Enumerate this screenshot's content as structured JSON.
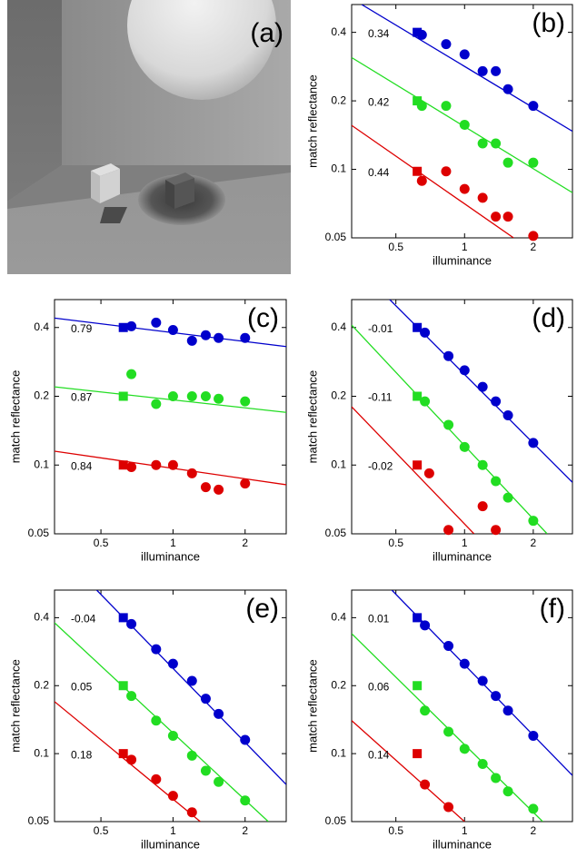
{
  "image_panel": {
    "label": "(a)"
  },
  "chart_data": [
    {
      "type": "scatter",
      "panel_label": "(b)",
      "xlabel": "illuminance",
      "ylabel": "match reflectance",
      "log_scale": true,
      "xlim": [
        0.32,
        2.97
      ],
      "ylim": [
        0.05,
        0.53
      ],
      "xticks": [
        0.5,
        1,
        2
      ],
      "yticks": [
        0.05,
        0.1,
        0.2,
        0.4
      ],
      "series": [
        {
          "color": "#0000cc",
          "annotation": "0.34",
          "reference": {
            "x": 0.62,
            "value": 0.4
          },
          "x": [
            0.65,
            0.83,
            1,
            1.2,
            1.37,
            1.55,
            2
          ],
          "values": [
            0.39,
            0.355,
            0.32,
            0.27,
            0.27,
            0.225,
            0.19
          ],
          "fit_x": [
            0.354,
            2.97
          ],
          "fit_y": [
            0.53,
            0.147
          ]
        },
        {
          "color": "#22dd22",
          "annotation": "0.42",
          "reference": {
            "x": 0.62,
            "value": 0.2
          },
          "x": [
            0.65,
            0.83,
            1,
            1.2,
            1.37,
            1.55,
            2
          ],
          "values": [
            0.19,
            0.19,
            0.157,
            0.13,
            0.13,
            0.107,
            0.107
          ],
          "fit_x": [
            0.32,
            2.97
          ],
          "fit_y": [
            0.31,
            0.079
          ]
        },
        {
          "color": "#dd0000",
          "annotation": "0.44",
          "reference": {
            "x": 0.62,
            "value": 0.098
          },
          "x": [
            0.65,
            0.83,
            1,
            1.2,
            1.37,
            1.55,
            2
          ],
          "values": [
            0.089,
            0.098,
            0.082,
            0.075,
            0.062,
            0.062,
            0.051
          ],
          "fit_x": [
            0.32,
            1.64
          ],
          "fit_y": [
            0.156,
            0.05
          ]
        }
      ]
    },
    {
      "type": "scatter",
      "panel_label": "(c)",
      "xlabel": "illuminance",
      "ylabel": "match reflectance",
      "log_scale": true,
      "xlim": [
        0.32,
        2.97
      ],
      "ylim": [
        0.05,
        0.53
      ],
      "xticks": [
        0.5,
        1,
        2
      ],
      "yticks": [
        0.05,
        0.1,
        0.2,
        0.4
      ],
      "series": [
        {
          "color": "#0000cc",
          "annotation": "0.79",
          "reference": {
            "x": 0.62,
            "value": 0.4
          },
          "x": [
            0.67,
            0.85,
            1,
            1.2,
            1.37,
            1.55,
            2
          ],
          "values": [
            0.405,
            0.42,
            0.39,
            0.35,
            0.37,
            0.36,
            0.36
          ],
          "fit_x": [
            0.32,
            2.97
          ],
          "fit_y": [
            0.44,
            0.33
          ]
        },
        {
          "color": "#22dd22",
          "annotation": "0.87",
          "reference": {
            "x": 0.62,
            "value": 0.2
          },
          "x": [
            0.67,
            0.85,
            1,
            1.2,
            1.37,
            1.55,
            2
          ],
          "values": [
            0.25,
            0.185,
            0.2,
            0.2,
            0.2,
            0.195,
            0.19
          ],
          "fit_x": [
            0.32,
            2.97
          ],
          "fit_y": [
            0.22,
            0.17
          ]
        },
        {
          "color": "#dd0000",
          "annotation": "0.84",
          "reference": {
            "x": 0.62,
            "value": 0.1
          },
          "x": [
            0.67,
            0.85,
            1,
            1.2,
            1.37,
            1.55,
            2
          ],
          "values": [
            0.098,
            0.1,
            0.1,
            0.092,
            0.08,
            0.078,
            0.083
          ],
          "fit_x": [
            0.32,
            2.97
          ],
          "fit_y": [
            0.115,
            0.082
          ]
        }
      ]
    },
    {
      "type": "scatter",
      "panel_label": "(d)",
      "xlabel": "illuminance",
      "ylabel": "match reflectance",
      "log_scale": true,
      "xlim": [
        0.32,
        2.97
      ],
      "ylim": [
        0.05,
        0.53
      ],
      "xticks": [
        0.5,
        1,
        2
      ],
      "yticks": [
        0.05,
        0.1,
        0.2,
        0.4
      ],
      "series": [
        {
          "color": "#0000cc",
          "annotation": "-0.01",
          "reference": {
            "x": 0.62,
            "value": 0.4
          },
          "x": [
            0.67,
            0.85,
            1,
            1.2,
            1.37,
            1.55,
            2
          ],
          "values": [
            0.38,
            0.3,
            0.26,
            0.22,
            0.19,
            0.165,
            0.125
          ],
          "fit_x": [
            0.47,
            2.97
          ],
          "fit_y": [
            0.53,
            0.084
          ]
        },
        {
          "color": "#22dd22",
          "annotation": "-0.11",
          "reference": {
            "x": 0.62,
            "value": 0.2
          },
          "x": [
            0.67,
            0.85,
            1,
            1.2,
            1.37,
            1.55,
            2
          ],
          "values": [
            0.19,
            0.15,
            0.12,
            0.1,
            0.085,
            0.072,
            0.057
          ],
          "fit_x": [
            0.32,
            2.3
          ],
          "fit_y": [
            0.41,
            0.05
          ]
        },
        {
          "color": "#dd0000",
          "annotation": "-0.02",
          "reference": {
            "x": 0.62,
            "value": 0.1
          },
          "x": [
            0.7,
            0.85,
            1.2,
            1.37
          ],
          "values": [
            0.092,
            0.052,
            0.066,
            0.052
          ],
          "fit_x": [
            0.32,
            1.1
          ],
          "fit_y": [
            0.18,
            0.05
          ]
        }
      ]
    },
    {
      "type": "scatter",
      "panel_label": "(e)",
      "xlabel": "illuminance",
      "ylabel": "match reflectance",
      "log_scale": true,
      "xlim": [
        0.32,
        2.97
      ],
      "ylim": [
        0.05,
        0.53
      ],
      "xticks": [
        0.5,
        1,
        2
      ],
      "yticks": [
        0.05,
        0.1,
        0.2,
        0.4
      ],
      "series": [
        {
          "color": "#0000cc",
          "annotation": "-0.04",
          "reference": {
            "x": 0.62,
            "value": 0.4
          },
          "x": [
            0.67,
            0.85,
            1,
            1.2,
            1.37,
            1.55,
            2
          ],
          "values": [
            0.375,
            0.29,
            0.25,
            0.21,
            0.175,
            0.15,
            0.115
          ],
          "fit_x": [
            0.48,
            2.97
          ],
          "fit_y": [
            0.53,
            0.073
          ]
        },
        {
          "color": "#22dd22",
          "annotation": "0.05",
          "reference": {
            "x": 0.62,
            "value": 0.2
          },
          "x": [
            0.67,
            0.85,
            1,
            1.2,
            1.37,
            1.55,
            2
          ],
          "values": [
            0.18,
            0.14,
            0.12,
            0.098,
            0.084,
            0.075,
            0.062
          ],
          "fit_x": [
            0.32,
            2.5
          ],
          "fit_y": [
            0.38,
            0.05
          ]
        },
        {
          "color": "#dd0000",
          "annotation": "0.18",
          "reference": {
            "x": 0.62,
            "value": 0.1
          },
          "x": [
            0.67,
            0.85,
            1,
            1.2
          ],
          "values": [
            0.094,
            0.077,
            0.065,
            0.055
          ],
          "fit_x": [
            0.32,
            1.3
          ],
          "fit_y": [
            0.17,
            0.05
          ]
        }
      ]
    },
    {
      "type": "scatter",
      "panel_label": "(f)",
      "xlabel": "illuminance",
      "ylabel": "match reflectance",
      "log_scale": true,
      "xlim": [
        0.32,
        2.97
      ],
      "ylim": [
        0.05,
        0.53
      ],
      "xticks": [
        0.5,
        1,
        2
      ],
      "yticks": [
        0.05,
        0.1,
        0.2,
        0.4
      ],
      "series": [
        {
          "color": "#0000cc",
          "annotation": "0.01",
          "reference": {
            "x": 0.62,
            "value": 0.4
          },
          "x": [
            0.67,
            0.85,
            1,
            1.2,
            1.37,
            1.55,
            2
          ],
          "values": [
            0.37,
            0.3,
            0.25,
            0.21,
            0.18,
            0.155,
            0.12
          ],
          "fit_x": [
            0.48,
            2.97
          ],
          "fit_y": [
            0.53,
            0.08
          ]
        },
        {
          "color": "#22dd22",
          "annotation": "0.06",
          "reference": {
            "x": 0.62,
            "value": 0.2
          },
          "x": [
            0.67,
            0.85,
            1,
            1.2,
            1.37,
            1.55,
            2
          ],
          "values": [
            0.155,
            0.125,
            0.105,
            0.09,
            0.078,
            0.068,
            0.057
          ],
          "fit_x": [
            0.32,
            2.2
          ],
          "fit_y": [
            0.34,
            0.05
          ]
        },
        {
          "color": "#dd0000",
          "annotation": "0.14",
          "reference": {
            "x": 0.62,
            "value": 0.1
          },
          "x": [
            0.67,
            0.85
          ],
          "values": [
            0.073,
            0.058
          ],
          "fit_x": [
            0.32,
            1.0
          ],
          "fit_y": [
            0.14,
            0.05
          ]
        }
      ]
    }
  ]
}
